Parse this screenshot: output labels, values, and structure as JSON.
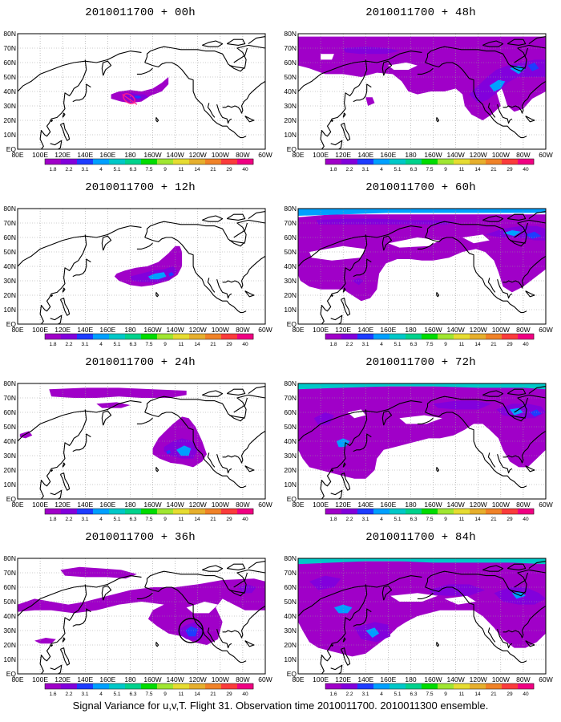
{
  "colors": [
    "#a000c8",
    "#8200dc",
    "#1e3cff",
    "#00a0ff",
    "#00c8c8",
    "#00d28c",
    "#00dc00",
    "#a0e632",
    "#e6dc32",
    "#e6af2d",
    "#f08228",
    "#fa3c3c",
    "#f00082"
  ],
  "colorbar_labels": [
    "1.8",
    "2.2",
    "3.1",
    "4",
    "5.1",
    "6.3",
    "7.5",
    "9",
    "11",
    "14",
    "21",
    "29",
    "40"
  ],
  "colorbar_labels_alt": [
    "1.6",
    "2.2",
    "3.1",
    "4",
    "5.1",
    "6.3",
    "7.5",
    "9",
    "11",
    "14",
    "21",
    "29",
    "40"
  ],
  "lat_labels": [
    "80N",
    "70N",
    "60N",
    "50N",
    "40N",
    "30N",
    "20N",
    "10N",
    "EQ"
  ],
  "lon_labels": [
    "80E",
    "100E",
    "120E",
    "140E",
    "160E",
    "180",
    "160W",
    "140W",
    "120W",
    "100W",
    "80W",
    "60W"
  ],
  "panels": [
    {
      "id": "00h",
      "title": "2010011700 + 00h",
      "cb": "colorbar_labels"
    },
    {
      "id": "12h",
      "title": "2010011700 + 12h",
      "cb": "colorbar_labels"
    },
    {
      "id": "24h",
      "title": "2010011700 + 24h",
      "cb": "colorbar_labels"
    },
    {
      "id": "36h",
      "title": "2010011700 + 36h",
      "cb": "colorbar_labels_alt"
    },
    {
      "id": "48h",
      "title": "2010011700 + 48h",
      "cb": "colorbar_labels"
    },
    {
      "id": "60h",
      "title": "2010011700 + 60h",
      "cb": "colorbar_labels"
    },
    {
      "id": "72h",
      "title": "2010011700 + 72h",
      "cb": "colorbar_labels"
    },
    {
      "id": "84h",
      "title": "2010011700 + 84h",
      "cb": "colorbar_labels_alt"
    }
  ],
  "footer": "Signal Variance for u,v,T. Flight 31. Observation time 2010011700. 2010011300 ensemble."
}
